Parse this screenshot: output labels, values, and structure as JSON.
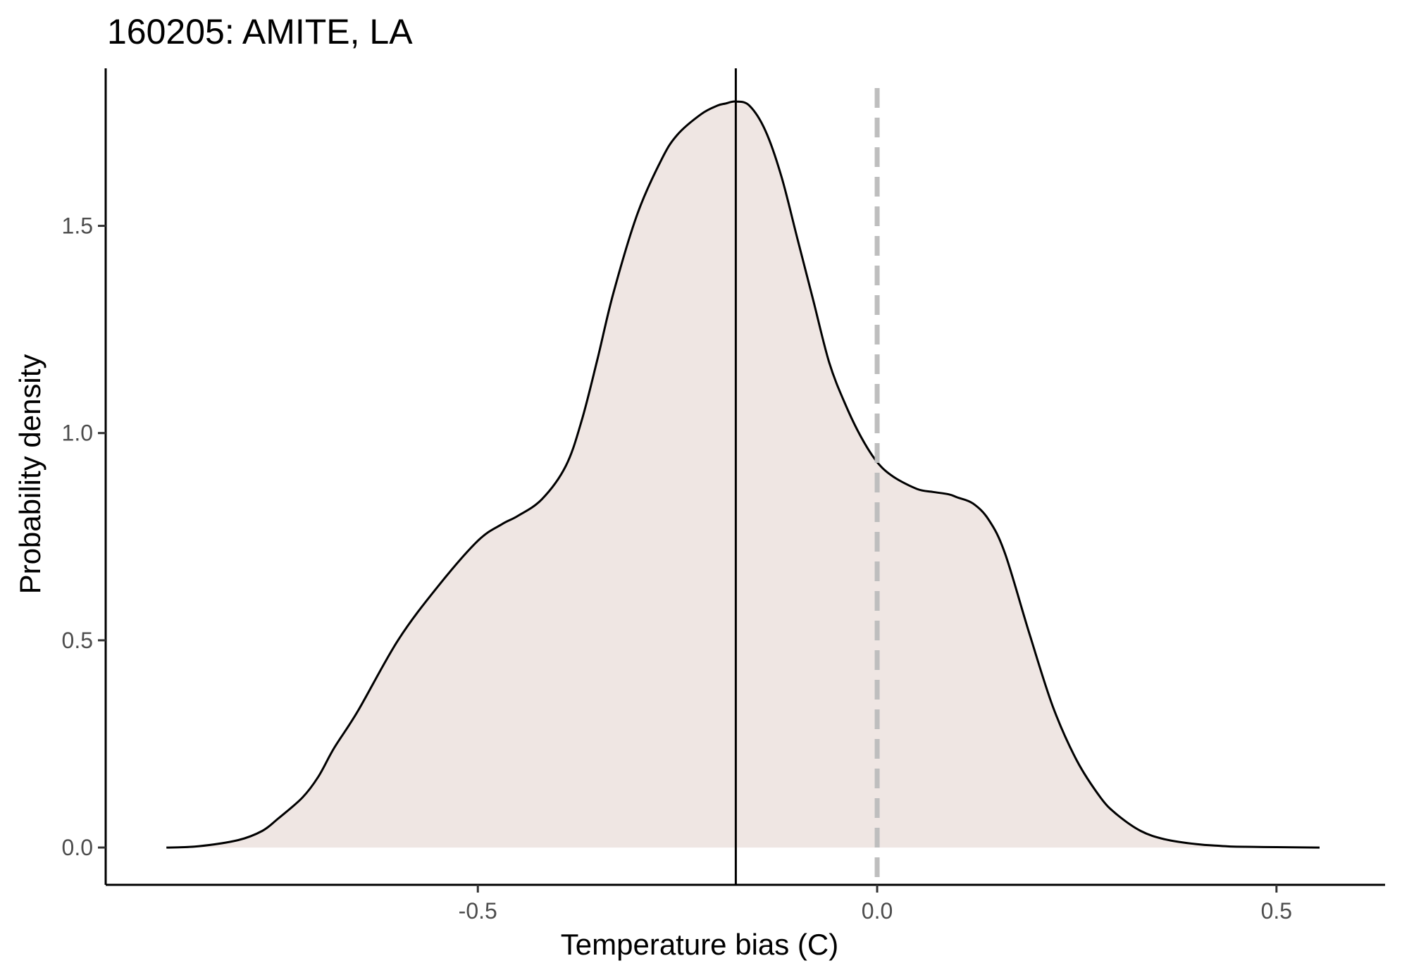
{
  "chart_data": {
    "type": "area",
    "title": "160205: AMITE, LA",
    "xlabel": "Temperature bias (C)",
    "ylabel": "Probability density",
    "xlim": [
      -0.966,
      0.636
    ],
    "ylim": [
      -0.09,
      1.88
    ],
    "x_ticks": [
      -0.5,
      0.0,
      0.5
    ],
    "x_tick_labels": [
      "-0.5",
      "0.0",
      "0.5"
    ],
    "y_ticks": [
      0.0,
      0.5,
      1.0,
      1.5
    ],
    "y_tick_labels": [
      "0.0",
      "0.5",
      "1.0",
      "1.5"
    ],
    "grid": false,
    "fill_color": "#efe6e3",
    "line_color": "#000000",
    "reference_lines": [
      {
        "x": -0.177,
        "style": "solid",
        "color": "#000000"
      },
      {
        "x": 0.0,
        "style": "dashed",
        "color": "#bebebe"
      }
    ],
    "series": [
      {
        "x": [
          -0.89,
          -0.85,
          -0.8,
          -0.77,
          -0.75,
          -0.72,
          -0.7,
          -0.68,
          -0.65,
          -0.6,
          -0.55,
          -0.5,
          -0.47,
          -0.45,
          -0.42,
          -0.39,
          -0.37,
          -0.35,
          -0.33,
          -0.3,
          -0.27,
          -0.25,
          -0.22,
          -0.2,
          -0.19,
          -0.177,
          -0.16,
          -0.14,
          -0.12,
          -0.1,
          -0.08,
          -0.06,
          -0.04,
          -0.02,
          0.0,
          0.02,
          0.05,
          0.07,
          0.09,
          0.1,
          0.12,
          0.14,
          0.16,
          0.19,
          0.22,
          0.25,
          0.28,
          0.3,
          0.33,
          0.36,
          0.4,
          0.43,
          0.45,
          0.5,
          0.554
        ],
        "y": [
          0.0,
          0.003,
          0.018,
          0.04,
          0.07,
          0.12,
          0.17,
          0.24,
          0.33,
          0.5,
          0.63,
          0.74,
          0.78,
          0.8,
          0.84,
          0.92,
          1.03,
          1.18,
          1.34,
          1.53,
          1.66,
          1.72,
          1.77,
          1.79,
          1.795,
          1.8,
          1.79,
          1.73,
          1.62,
          1.47,
          1.32,
          1.17,
          1.07,
          0.99,
          0.93,
          0.895,
          0.865,
          0.858,
          0.852,
          0.845,
          0.83,
          0.79,
          0.71,
          0.52,
          0.34,
          0.21,
          0.12,
          0.08,
          0.04,
          0.02,
          0.008,
          0.004,
          0.002,
          0.001,
          0.0
        ]
      }
    ]
  }
}
